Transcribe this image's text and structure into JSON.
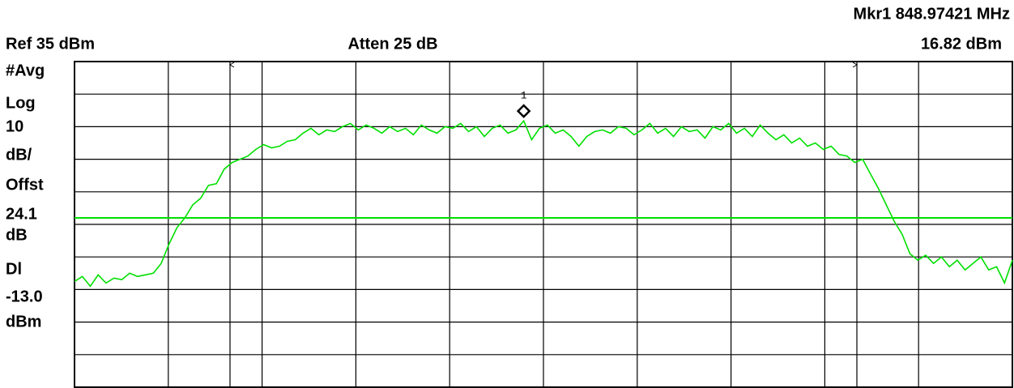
{
  "chart_data": {
    "type": "line",
    "marker_text": "Mkr1  848.97421 MHz",
    "marker_value_text": "16.82 dBm",
    "ref_text": "Ref 35 dBm",
    "atten_text": "Atten 25 dB",
    "side_labels": [
      "#Avg",
      "Log",
      "10",
      "dB/",
      "Offst",
      "24.1",
      "dB",
      "Dl",
      "dBm"
    ],
    "display_line": {
      "value": -13,
      "label": "-13.0"
    },
    "marker": {
      "label": "1",
      "value": 16.82
    },
    "ylim": [
      -65,
      35
    ],
    "color": "#00e000",
    "values": [
      -32.5,
      -31,
      -34,
      -30.5,
      -33,
      -31.5,
      -32,
      -30,
      -31,
      -30.5,
      -30,
      -27,
      -21,
      -16,
      -13,
      -9,
      -7,
      -3,
      -2.5,
      2,
      4,
      5,
      6,
      8,
      9.5,
      8.5,
      9,
      10.5,
      11,
      13,
      14.5,
      12.5,
      14,
      13.5,
      15,
      16,
      14,
      15.5,
      14.5,
      13,
      15,
      13.5,
      14.5,
      12.5,
      15.5,
      14,
      13,
      15,
      14.5,
      16,
      13.5,
      15,
      12,
      14.5,
      15.5,
      13,
      14,
      16.8,
      11,
      14.5,
      15.5,
      13,
      14,
      12,
      9,
      12,
      13.5,
      14,
      13,
      15,
      14.5,
      12.5,
      14,
      16,
      13,
      14.5,
      12,
      15,
      13.5,
      14,
      11.5,
      15,
      14,
      16,
      13,
      14.5,
      12,
      15.5,
      13,
      11,
      12.5,
      10,
      11.5,
      9,
      10,
      8,
      9,
      6.5,
      6,
      4,
      5,
      0.5,
      -4,
      -9,
      -14,
      -18,
      -24,
      -26,
      -24.5,
      -27,
      -25,
      -28,
      -26,
      -29,
      -27,
      -25,
      -29,
      -28,
      -33,
      -26
    ]
  }
}
